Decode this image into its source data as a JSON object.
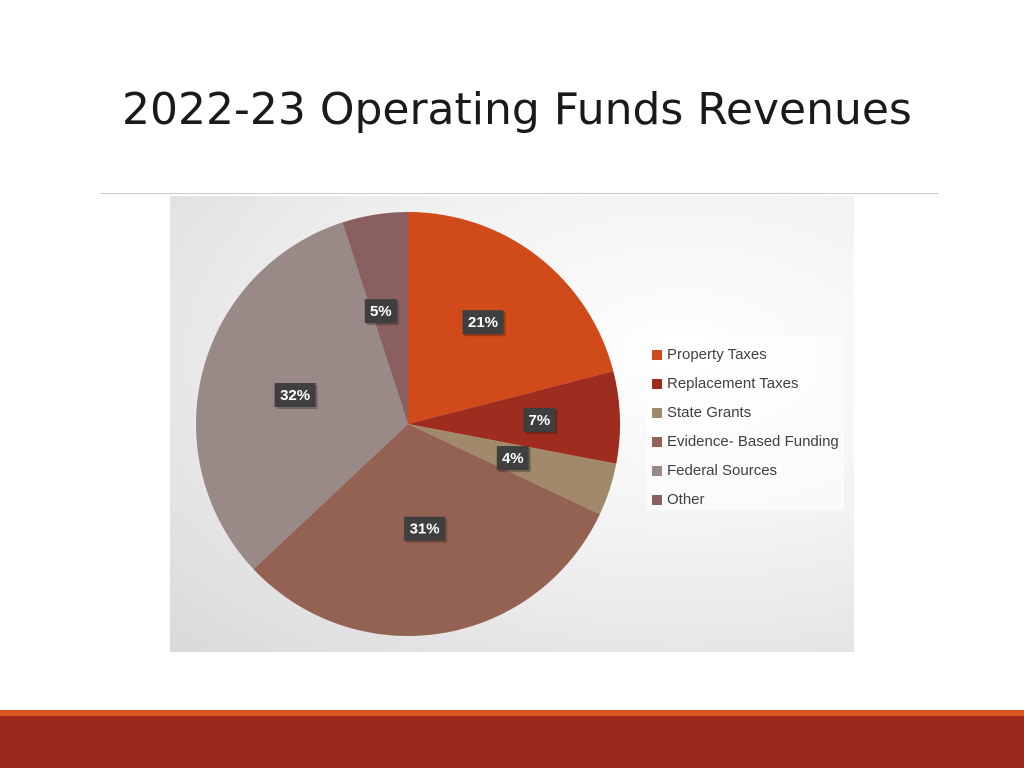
{
  "slide": {
    "title": "2022-23 Operating Funds Revenues"
  },
  "theme": {
    "footer_accent": "#d9571f",
    "footer_band": "#9b2a1c"
  },
  "chart_data": {
    "type": "pie",
    "title": "",
    "start_angle_deg": 0,
    "direction": "clockwise",
    "legend_position": "right",
    "slices": [
      {
        "label": "Property Taxes",
        "value": 21,
        "display": "21%",
        "color": "#d04a1a"
      },
      {
        "label": "Replacement Taxes",
        "value": 7,
        "display": "7%",
        "color": "#9e2c1f"
      },
      {
        "label": "State Grants",
        "value": 4,
        "display": "4%",
        "color": "#a08a6b"
      },
      {
        "label": "Evidence- Based Funding",
        "value": 31,
        "display": "31%",
        "color": "#946253"
      },
      {
        "label": "Federal Sources",
        "value": 32,
        "display": "32%",
        "color": "#998a87"
      },
      {
        "label": "Other",
        "value": 5,
        "display": "5%",
        "color": "#8a5f5f"
      }
    ]
  }
}
